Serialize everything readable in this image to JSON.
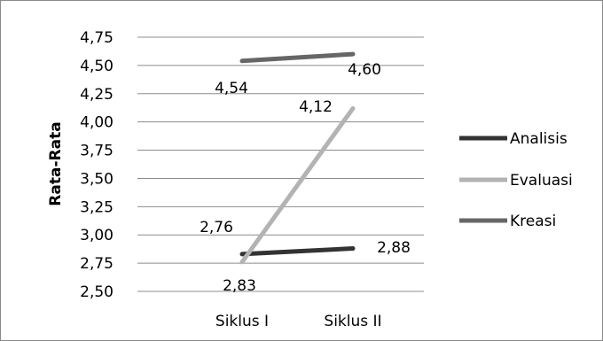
{
  "chart_data": {
    "type": "line",
    "categories": [
      "Siklus I",
      "Siklus II"
    ],
    "series": [
      {
        "name": "Analisis",
        "values": [
          2.83,
          2.88
        ],
        "color": "#333333",
        "labels": [
          "2,83",
          "2,88"
        ]
      },
      {
        "name": "Evaluasi",
        "values": [
          2.76,
          4.12
        ],
        "color": "#b3b3b3",
        "labels": [
          "2,76",
          "4,12"
        ]
      },
      {
        "name": "Kreasi",
        "values": [
          4.54,
          4.6
        ],
        "color": "#666666",
        "labels": [
          "4,54",
          "4,60"
        ]
      }
    ],
    "ylabel": "Rata-Rata",
    "xlabel": "",
    "ylim": [
      2.5,
      4.75
    ],
    "yticks": [
      "2,50",
      "2,75",
      "3,00",
      "3,25",
      "3,50",
      "3,75",
      "4,00",
      "4,25",
      "4,50",
      "4,75"
    ],
    "ytick_values": [
      2.5,
      2.75,
      3.0,
      3.25,
      3.5,
      3.75,
      4.0,
      4.25,
      4.5,
      4.75
    ],
    "grid": true,
    "legend_position": "right"
  }
}
